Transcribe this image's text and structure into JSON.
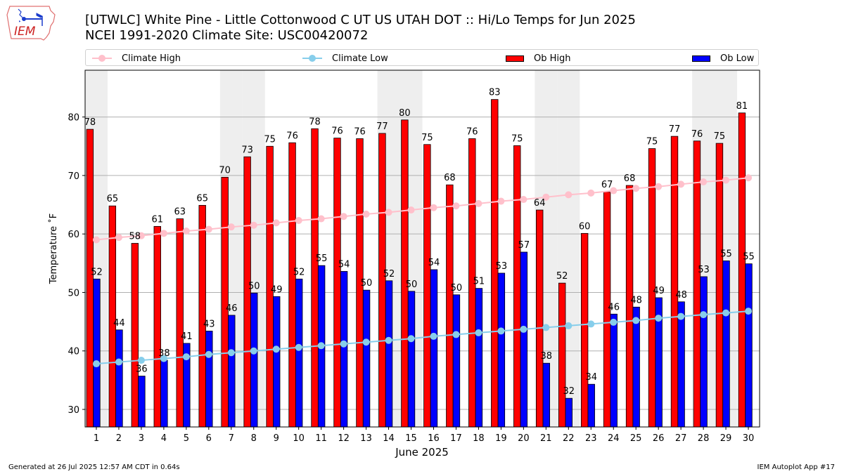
{
  "header": {
    "title_line1": "[UTWLC] White Pine - Little Cottonwood C UT US UTAH DOT :: Hi/Lo Temps for Jun 2025",
    "title_line2": "NCEI 1991-2020 Climate Site: USC00420072",
    "logo_text": "IEM"
  },
  "legend": {
    "items": [
      {
        "label": "Climate High",
        "kind": "line",
        "color": "#ffc0cb"
      },
      {
        "label": "Climate Low",
        "kind": "line",
        "color": "#87ceeb"
      },
      {
        "label": "Ob High",
        "kind": "bar",
        "color": "#ff0000"
      },
      {
        "label": "Ob Low",
        "kind": "bar",
        "color": "#0000ff"
      }
    ]
  },
  "footer": {
    "generated": "Generated at 26 Jul 2025 12:57 AM CDT in 0.64s",
    "app": "IEM Autoplot App #17"
  },
  "chart_data": {
    "type": "bar",
    "title": "[UTWLC] White Pine - Little Cottonwood C UT US UTAH DOT :: Hi/Lo Temps for Jun 2025",
    "subtitle": "NCEI 1991-2020 Climate Site: USC00420072",
    "xlabel": "June 2025",
    "ylabel": "Temperature ˚F",
    "xlim": [
      0.5,
      30.5
    ],
    "ylim": [
      27,
      88
    ],
    "yticks": [
      30,
      40,
      50,
      60,
      70,
      80
    ],
    "grid": "y",
    "legend_position": "top (above plot)",
    "weekend_shading_days": [
      1,
      7,
      8,
      14,
      15,
      21,
      22,
      28,
      29
    ],
    "categories": [
      1,
      2,
      3,
      4,
      5,
      6,
      7,
      8,
      9,
      10,
      11,
      12,
      13,
      14,
      15,
      16,
      17,
      18,
      19,
      20,
      21,
      22,
      23,
      24,
      25,
      26,
      27,
      28,
      29,
      30
    ],
    "series": [
      {
        "name": "Ob High",
        "type": "bar",
        "color": "#ff0000",
        "values": [
          77.9,
          64.8,
          58.4,
          61.3,
          62.6,
          64.9,
          69.7,
          73.2,
          75.0,
          75.6,
          78.0,
          76.4,
          76.3,
          77.2,
          79.5,
          75.3,
          68.4,
          76.3,
          83.0,
          75.1,
          64.1,
          51.6,
          60.1,
          67.2,
          68.3,
          74.6,
          76.7,
          75.9,
          75.5,
          80.7
        ],
        "labels": [
          78,
          65,
          58,
          61,
          63,
          65,
          70,
          73,
          75,
          76,
          78,
          76,
          76,
          77,
          80,
          75,
          68,
          76,
          83,
          75,
          64,
          52,
          60,
          67,
          68,
          75,
          77,
          76,
          75,
          81
        ]
      },
      {
        "name": "Ob Low",
        "type": "bar",
        "color": "#0000ff",
        "values": [
          52.3,
          43.6,
          35.7,
          38.4,
          41.3,
          43.4,
          46.1,
          49.9,
          49.3,
          52.3,
          54.6,
          53.6,
          50.4,
          52.0,
          50.2,
          53.9,
          49.6,
          50.7,
          53.3,
          56.9,
          37.9,
          31.9,
          34.3,
          46.3,
          47.5,
          49.1,
          48.4,
          52.7,
          55.4,
          54.9
        ],
        "labels": [
          52,
          44,
          36,
          38,
          41,
          43,
          46,
          50,
          49,
          52,
          55,
          54,
          50,
          52,
          50,
          54,
          50,
          51,
          53,
          57,
          38,
          32,
          34,
          46,
          48,
          49,
          48,
          53,
          55,
          55
        ]
      },
      {
        "name": "Climate High",
        "type": "line",
        "color": "#ffc0cb",
        "values": [
          59.0,
          59.4,
          59.7,
          60.1,
          60.5,
          60.8,
          61.2,
          61.5,
          61.9,
          62.3,
          62.6,
          63.0,
          63.4,
          63.7,
          64.1,
          64.5,
          64.8,
          65.2,
          65.6,
          65.9,
          66.3,
          66.7,
          67.0,
          67.4,
          67.8,
          68.1,
          68.5,
          68.9,
          69.2,
          69.6
        ]
      },
      {
        "name": "Climate Low",
        "type": "line",
        "color": "#87ceeb",
        "values": [
          37.8,
          38.1,
          38.4,
          38.7,
          39.0,
          39.4,
          39.7,
          40.0,
          40.3,
          40.6,
          40.9,
          41.2,
          41.5,
          41.8,
          42.1,
          42.5,
          42.8,
          43.1,
          43.4,
          43.7,
          44.0,
          44.3,
          44.6,
          44.9,
          45.2,
          45.6,
          45.9,
          46.2,
          46.5,
          46.8
        ]
      }
    ]
  }
}
